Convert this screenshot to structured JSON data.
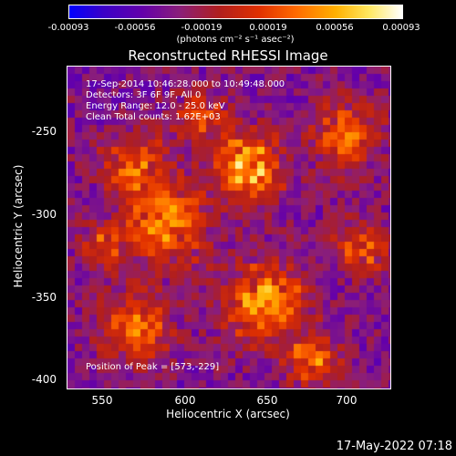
{
  "colorbar": {
    "ticks": [
      "-0.00093",
      "-0.00056",
      "-0.00019",
      "0.00019",
      "0.00056",
      "0.00093"
    ],
    "unit": "(photons cm⁻² s⁻¹ asec⁻²)"
  },
  "title": "Reconstructed RHESSI Image",
  "info": {
    "line1": "17-Sep-2014 10:46:28.000 to 10:49:48.000",
    "line2": "Detectors: 3F 6F 9F, All 0",
    "line3": "Energy Range: 12.0 - 25.0 keV",
    "line4": "Clean     Total counts: 1.62E+03",
    "peak": "Position of Peak = [573,-229]"
  },
  "axes": {
    "xlabel": "Heliocentric X (arcsec)",
    "ylabel": "Heliocentric Y (arcsec)",
    "xticks": [
      "550",
      "600",
      "650",
      "700"
    ],
    "yticks": [
      "-250",
      "-300",
      "-350",
      "-400"
    ]
  },
  "timestamp": "17-May-2022 07:18"
}
